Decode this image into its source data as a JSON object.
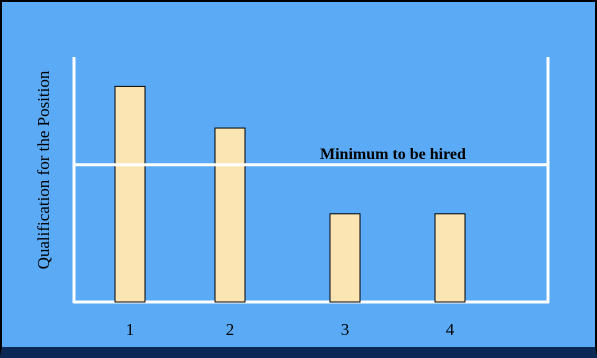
{
  "chart_data": {
    "type": "bar",
    "categories": [
      "1",
      "2",
      "3",
      "4"
    ],
    "values": [
      0.88,
      0.71,
      0.36,
      0.36
    ],
    "ylim": [
      0,
      1
    ],
    "ylabel": "Qualification for the Position",
    "xlabel": "",
    "title": "",
    "threshold": {
      "label": "Minimum to be hired",
      "value": 0.56
    },
    "grid": false,
    "legend": "none"
  },
  "colors": {
    "background": "#5aaaf6",
    "bar_fill": "#fbe6b3",
    "bar_stroke": "#000000",
    "axis": "#ffffff",
    "text": "#000000"
  }
}
